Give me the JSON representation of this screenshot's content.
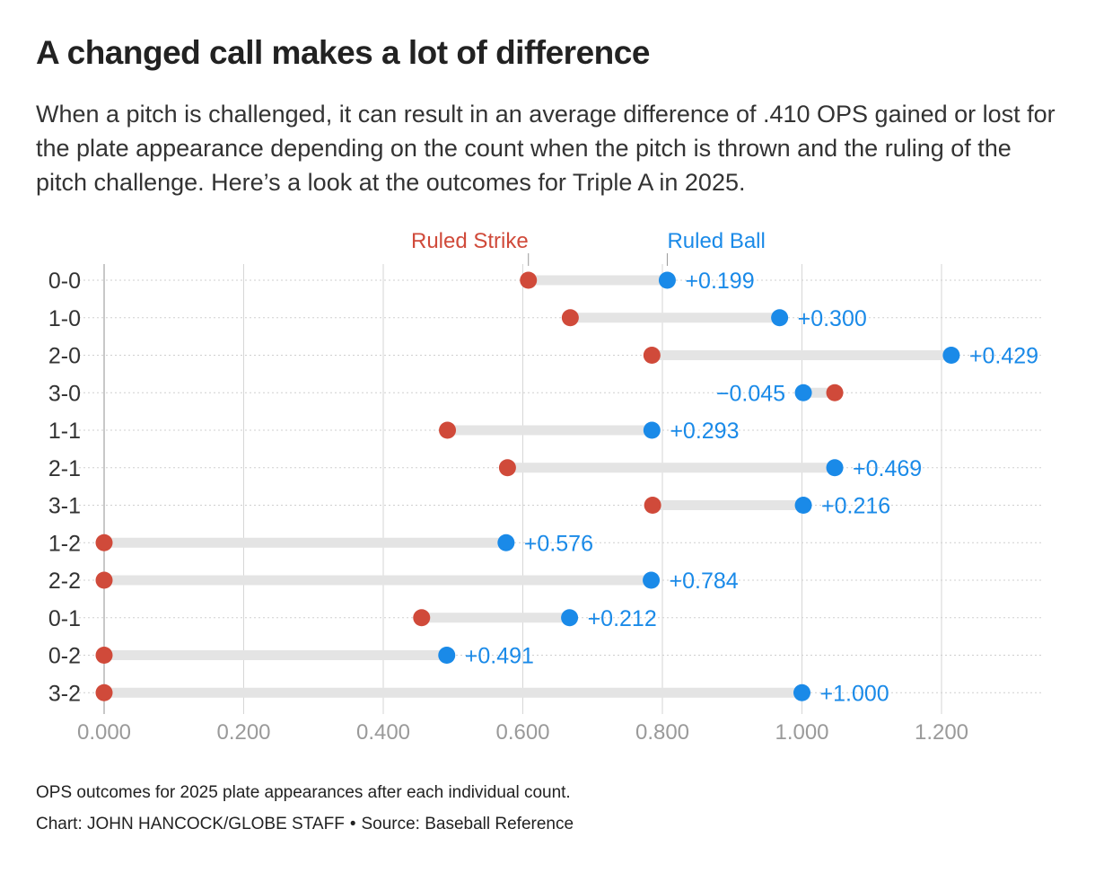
{
  "title": "A changed call makes a lot of difference",
  "subtitle": "When a pitch is challenged, it can result in an average difference of .410 OPS gained or lost for the plate appearance depending on the count when the pitch is thrown and the ruling of the pitch challenge. Here’s a look at the outcomes for Triple A in 2025.",
  "colors": {
    "strike": "#d04a3a",
    "ball": "#1a8ae8",
    "grid": "#d6d6d6",
    "connector": "#e4e4e4",
    "tick": "#9a9a9a"
  },
  "chart_data": {
    "type": "dumbbell",
    "xlim": [
      0,
      1.3
    ],
    "xticks": [
      "0.000",
      "0.200",
      "0.400",
      "0.600",
      "0.800",
      "1.000",
      "1.200"
    ],
    "xtick_values": [
      0,
      0.2,
      0.4,
      0.6,
      0.8,
      1.0,
      1.2
    ],
    "legend": {
      "strike": "Ruled Strike",
      "ball": "Ruled Ball"
    },
    "rows": [
      {
        "count": "0-0",
        "strike": 0.608,
        "ball": 0.807,
        "diff": "+0.199"
      },
      {
        "count": "1-0",
        "strike": 0.668,
        "ball": 0.968,
        "diff": "+0.300"
      },
      {
        "count": "2-0",
        "strike": 0.785,
        "ball": 1.214,
        "diff": "+0.429"
      },
      {
        "count": "3-0",
        "strike": 1.047,
        "ball": 1.002,
        "diff": "−0.045"
      },
      {
        "count": "1-1",
        "strike": 0.492,
        "ball": 0.785,
        "diff": "+0.293"
      },
      {
        "count": "2-1",
        "strike": 0.578,
        "ball": 1.047,
        "diff": "+0.469"
      },
      {
        "count": "3-1",
        "strike": 0.786,
        "ball": 1.002,
        "diff": "+0.216"
      },
      {
        "count": "1-2",
        "strike": 0.0,
        "ball": 0.576,
        "diff": "+0.576"
      },
      {
        "count": "2-2",
        "strike": 0.0,
        "ball": 0.784,
        "diff": "+0.784"
      },
      {
        "count": "0-1",
        "strike": 0.455,
        "ball": 0.667,
        "diff": "+0.212"
      },
      {
        "count": "0-2",
        "strike": 0.0,
        "ball": 0.491,
        "diff": "+0.491"
      },
      {
        "count": "3-2",
        "strike": 0.0,
        "ball": 1.0,
        "diff": "+1.000"
      }
    ]
  },
  "footer": {
    "note": "OPS outcomes for 2025 plate appearances after each individual count.",
    "credit": "Chart: JOHN HANCOCK/GLOBE STAFF",
    "separator": "•",
    "source": "Source: Baseball Reference"
  }
}
